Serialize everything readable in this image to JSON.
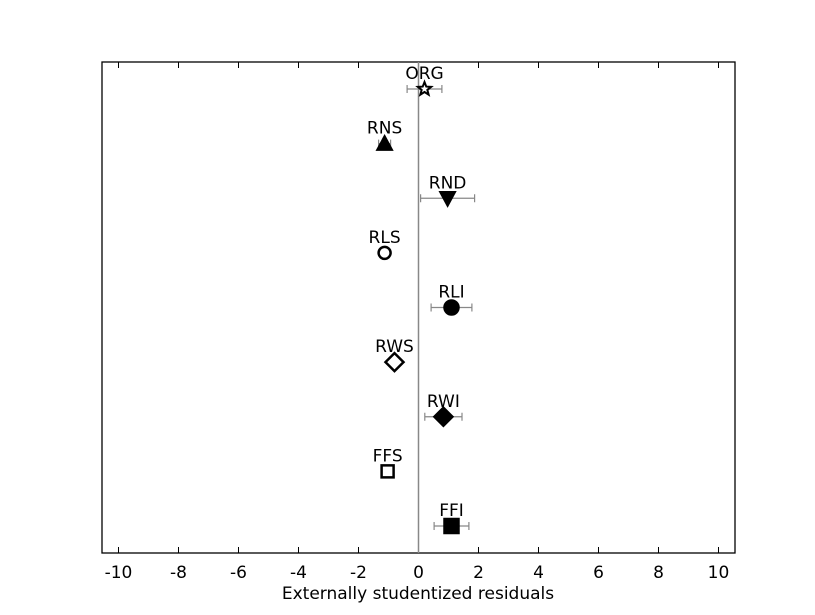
{
  "chart_data": {
    "type": "errorbar-dot",
    "xlabel": "Externally studentized residuals",
    "categories": [
      "ORG",
      "RNS",
      "RND",
      "RLS",
      "RLI",
      "RWS",
      "RWI",
      "FFS",
      "FFI"
    ],
    "values": [
      0.2,
      -1.13,
      0.97,
      -1.13,
      1.1,
      -0.8,
      0.83,
      -1.03,
      1.1
    ],
    "errors": [
      0.58,
      0.2,
      0.9,
      0.1,
      0.68,
      0.1,
      0.62,
      0.1,
      0.58
    ],
    "markers": [
      "star-open",
      "triangle-up-filled",
      "triangle-down-filled",
      "circle-open",
      "circle-filled",
      "diamond-open",
      "diamond-filled",
      "square-open",
      "square-filled"
    ],
    "color": "#000000",
    "errorbar_color": "#888888",
    "vline": 0,
    "xlim": [
      -10.55,
      10.55
    ],
    "xticks": [
      -10,
      -8,
      -6,
      -4,
      -2,
      0,
      2,
      4,
      6,
      8,
      10
    ]
  }
}
